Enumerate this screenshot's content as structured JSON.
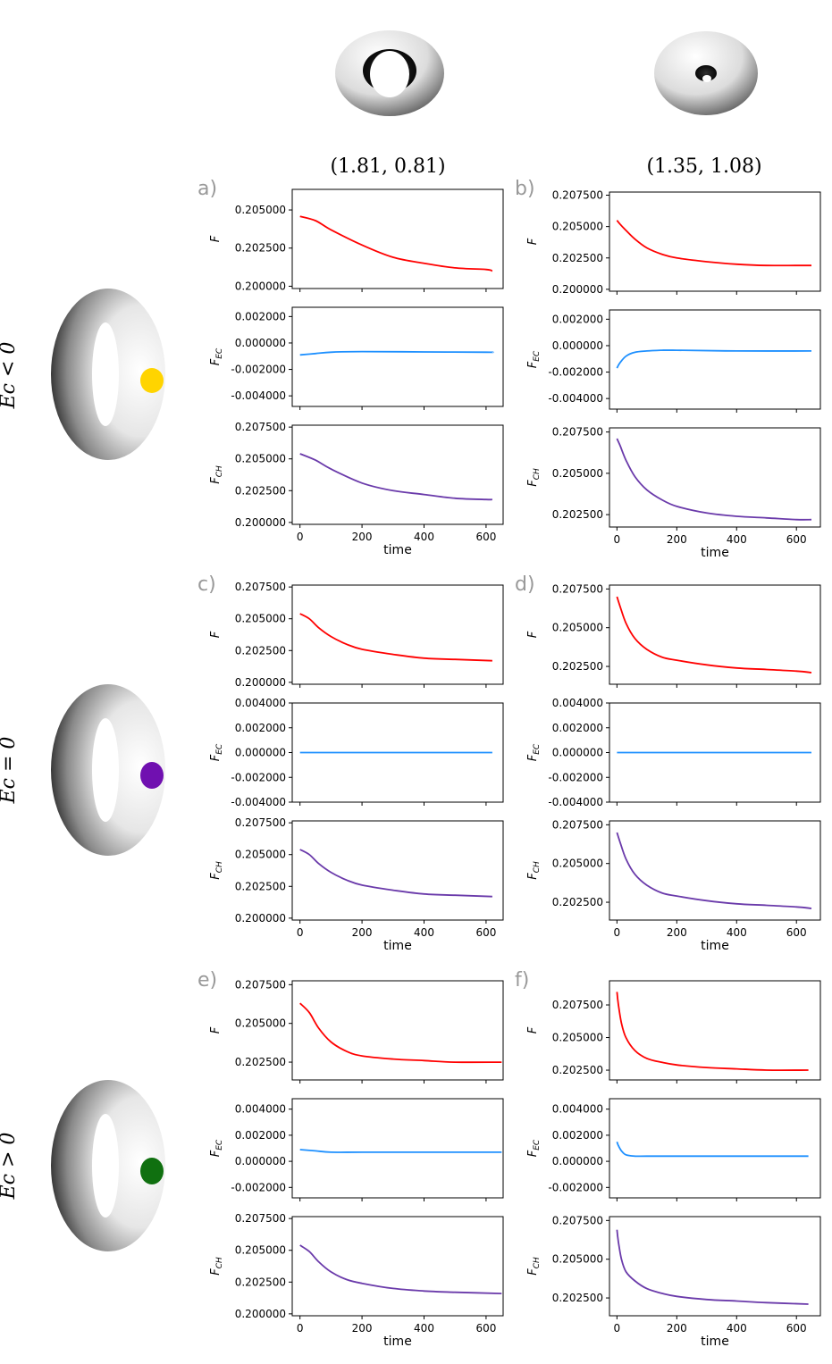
{
  "columns": [
    {
      "label": "(1.81, 0.81)"
    },
    {
      "label": "(1.35, 1.08)"
    }
  ],
  "rows": [
    {
      "label": "Ec < 0",
      "dot_color": "#ffd400"
    },
    {
      "label": "Ec = 0",
      "dot_color": "#7010b0"
    },
    {
      "label": "Ec > 0",
      "dot_color": "#107010"
    }
  ],
  "colors": {
    "F": "#ff0000",
    "F_EC": "#1e90ff",
    "F_CH": "#6a3aaa"
  },
  "chart_data": [
    {
      "type": "line",
      "panel": "a",
      "title": "a)",
      "xlabel": "time",
      "xticks": [
        0,
        200,
        400,
        600
      ],
      "subplots": [
        {
          "ylabel": "F",
          "color": "red",
          "ylim": [
            0.19985,
            0.20635
          ],
          "yticks": [
            "0.200000",
            "0.202500",
            "0.205000"
          ],
          "x": [
            0,
            50,
            100,
            200,
            300,
            400,
            500,
            600,
            620
          ],
          "y": [
            0.20458,
            0.2043,
            0.2037,
            0.2027,
            0.2019,
            0.2015,
            0.2012,
            0.2011,
            0.201
          ]
        },
        {
          "ylabel": "F_EC",
          "color": "blue",
          "ylim": [
            -0.0048,
            0.0027
          ],
          "yticks": [
            "-0.004000",
            "-0.002000",
            "0.000000",
            "0.002000"
          ],
          "x": [
            0,
            50,
            100,
            200,
            400,
            600,
            620
          ],
          "y": [
            -0.0009,
            -0.0008,
            -0.0007,
            -0.00065,
            -0.00068,
            -0.0007,
            -0.0007
          ],
          "ylabel_text": "FEC"
        },
        {
          "ylabel": "F_CH",
          "color": "purple",
          "ylim": [
            0.19985,
            0.20765
          ],
          "yticks": [
            "0.200000",
            "0.202500",
            "0.205000",
            "0.207500"
          ],
          "x": [
            0,
            50,
            100,
            200,
            300,
            400,
            500,
            600,
            620
          ],
          "y": [
            0.2054,
            0.2049,
            0.2042,
            0.2031,
            0.2025,
            0.2022,
            0.2019,
            0.2018,
            0.2018
          ],
          "ylabel_text": "FCH"
        }
      ]
    },
    {
      "type": "line",
      "panel": "b",
      "title": "b)",
      "xlabel": "time",
      "xticks": [
        0,
        200,
        400,
        600
      ],
      "subplots": [
        {
          "ylabel": "F",
          "color": "red",
          "ylim": [
            0.19985,
            0.20775
          ],
          "yticks": [
            "0.200000",
            "0.202500",
            "0.205000",
            "0.207500"
          ],
          "x": [
            0,
            10,
            30,
            60,
            100,
            150,
            200,
            300,
            400,
            500,
            600,
            650
          ],
          "y": [
            0.2055,
            0.2052,
            0.2047,
            0.204,
            0.2033,
            0.2028,
            0.2025,
            0.2022,
            0.202,
            0.2019,
            0.2019,
            0.2019
          ]
        },
        {
          "ylabel": "F_EC",
          "color": "blue",
          "ylim": [
            -0.0048,
            0.0027
          ],
          "yticks": [
            "-0.004000",
            "-0.002000",
            "0.000000",
            "0.002000"
          ],
          "x": [
            0,
            10,
            30,
            60,
            100,
            150,
            200,
            400,
            650
          ],
          "y": [
            -0.0017,
            -0.0013,
            -0.0008,
            -0.0005,
            -0.0004,
            -0.00035,
            -0.00035,
            -0.0004,
            -0.0004
          ],
          "ylabel_text": "FEC"
        },
        {
          "ylabel": "F_CH",
          "color": "purple",
          "ylim": [
            0.20175,
            0.20775
          ],
          "yticks": [
            "0.202500",
            "0.205000",
            "0.207500"
          ],
          "x": [
            0,
            10,
            30,
            60,
            100,
            150,
            200,
            300,
            400,
            500,
            600,
            650
          ],
          "y": [
            0.2071,
            0.2067,
            0.2058,
            0.2048,
            0.204,
            0.2034,
            0.203,
            0.2026,
            0.2024,
            0.2023,
            0.2022,
            0.2022
          ],
          "ylabel_text": "FCH"
        }
      ]
    },
    {
      "type": "line",
      "panel": "c",
      "title": "c)",
      "xlabel": "time",
      "xticks": [
        0,
        200,
        400,
        600
      ],
      "subplots": [
        {
          "ylabel": "F",
          "color": "red",
          "ylim": [
            0.19985,
            0.20765
          ],
          "yticks": [
            "0.200000",
            "0.202500",
            "0.205000",
            "0.207500"
          ],
          "x": [
            0,
            30,
            60,
            100,
            150,
            200,
            300,
            400,
            500,
            620
          ],
          "y": [
            0.2054,
            0.205,
            0.2043,
            0.2036,
            0.203,
            0.2026,
            0.2022,
            0.2019,
            0.2018,
            0.2017
          ]
        },
        {
          "ylabel": "F_EC",
          "color": "blue",
          "ylim": [
            -0.004,
            0.004
          ],
          "yticks": [
            "-0.004000",
            "-0.002000",
            "0.000000",
            "0.002000",
            "0.004000"
          ],
          "x": [
            0,
            620
          ],
          "y": [
            0.0,
            0.0
          ],
          "ylabel_text": "FEC"
        },
        {
          "ylabel": "F_CH",
          "color": "purple",
          "ylim": [
            0.19985,
            0.20765
          ],
          "yticks": [
            "0.200000",
            "0.202500",
            "0.205000",
            "0.207500"
          ],
          "x": [
            0,
            30,
            60,
            100,
            150,
            200,
            300,
            400,
            500,
            620
          ],
          "y": [
            0.2054,
            0.205,
            0.2043,
            0.2036,
            0.203,
            0.2026,
            0.2022,
            0.2019,
            0.2018,
            0.2017
          ],
          "ylabel_text": "FCH"
        }
      ]
    },
    {
      "type": "line",
      "panel": "d",
      "title": "d)",
      "xlabel": "time",
      "xticks": [
        0,
        200,
        400,
        600
      ],
      "subplots": [
        {
          "ylabel": "F",
          "color": "red",
          "ylim": [
            0.20135,
            0.20775
          ],
          "yticks": [
            "0.202500",
            "0.205000",
            "0.207500"
          ],
          "x": [
            0,
            10,
            30,
            60,
            100,
            150,
            200,
            300,
            400,
            500,
            600,
            650
          ],
          "y": [
            0.207,
            0.2064,
            0.2053,
            0.2043,
            0.2036,
            0.2031,
            0.2029,
            0.2026,
            0.2024,
            0.2023,
            0.2022,
            0.2021
          ]
        },
        {
          "ylabel": "F_EC",
          "color": "blue",
          "ylim": [
            -0.004,
            0.004
          ],
          "yticks": [
            "-0.004000",
            "-0.002000",
            "0.000000",
            "0.002000",
            "0.004000"
          ],
          "x": [
            0,
            650
          ],
          "y": [
            0.0,
            0.0
          ],
          "ylabel_text": "FEC"
        },
        {
          "ylabel": "F_CH",
          "color": "purple",
          "ylim": [
            0.20135,
            0.20775
          ],
          "yticks": [
            "0.202500",
            "0.205000",
            "0.207500"
          ],
          "x": [
            0,
            10,
            30,
            60,
            100,
            150,
            200,
            300,
            400,
            500,
            600,
            650
          ],
          "y": [
            0.207,
            0.2064,
            0.2053,
            0.2043,
            0.2036,
            0.2031,
            0.2029,
            0.2026,
            0.2024,
            0.2023,
            0.2022,
            0.2021
          ],
          "ylabel_text": "FCH"
        }
      ]
    },
    {
      "type": "line",
      "panel": "e",
      "title": "e)",
      "xlabel": "time",
      "xticks": [
        0,
        200,
        400,
        600
      ],
      "subplots": [
        {
          "ylabel": "F",
          "color": "red",
          "ylim": [
            0.20135,
            0.20775
          ],
          "yticks": [
            "0.202500",
            "0.205000",
            "0.207500"
          ],
          "x": [
            0,
            30,
            60,
            100,
            150,
            200,
            300,
            400,
            500,
            650
          ],
          "y": [
            0.2063,
            0.2057,
            0.2047,
            0.2038,
            0.2032,
            0.2029,
            0.2027,
            0.2026,
            0.2025,
            0.2025
          ]
        },
        {
          "ylabel": "F_EC",
          "color": "blue",
          "ylim": [
            -0.0028,
            0.0048
          ],
          "yticks": [
            "-0.002000",
            "0.000000",
            "0.002000",
            "0.004000"
          ],
          "x": [
            0,
            50,
            100,
            200,
            400,
            650
          ],
          "y": [
            0.0009,
            0.0008,
            0.0007,
            0.0007,
            0.0007,
            0.0007
          ],
          "ylabel_text": "FEC"
        },
        {
          "ylabel": "F_CH",
          "color": "purple",
          "ylim": [
            0.19985,
            0.20765
          ],
          "yticks": [
            "0.200000",
            "0.202500",
            "0.205000",
            "0.207500"
          ],
          "x": [
            0,
            30,
            60,
            100,
            150,
            200,
            300,
            400,
            500,
            650
          ],
          "y": [
            0.2054,
            0.2049,
            0.2041,
            0.2033,
            0.2027,
            0.2024,
            0.202,
            0.2018,
            0.2017,
            0.2016
          ],
          "ylabel_text": "FCH"
        }
      ]
    },
    {
      "type": "line",
      "panel": "f",
      "title": "f)",
      "xlabel": "time",
      "xticks": [
        0,
        200,
        400,
        600
      ],
      "subplots": [
        {
          "ylabel": "F",
          "color": "red",
          "ylim": [
            0.20175,
            0.20935
          ],
          "yticks": [
            "0.202500",
            "0.205000",
            "0.207500"
          ],
          "x": [
            0,
            5,
            15,
            30,
            60,
            100,
            150,
            200,
            300,
            400,
            500,
            640
          ],
          "y": [
            0.2085,
            0.2075,
            0.2061,
            0.205,
            0.204,
            0.2034,
            0.2031,
            0.2029,
            0.2027,
            0.2026,
            0.2025,
            0.2025
          ]
        },
        {
          "ylabel": "F_EC",
          "color": "blue",
          "ylim": [
            -0.0028,
            0.0048
          ],
          "yticks": [
            "-0.002000",
            "0.000000",
            "0.002000",
            "0.004000"
          ],
          "x": [
            0,
            5,
            15,
            30,
            60,
            100,
            200,
            400,
            640
          ],
          "y": [
            0.0015,
            0.0012,
            0.0008,
            0.0005,
            0.0004,
            0.0004,
            0.0004,
            0.0004,
            0.0004
          ],
          "ylabel_text": "FEC"
        },
        {
          "ylabel": "F_CH",
          "color": "purple",
          "ylim": [
            0.20135,
            0.20775
          ],
          "yticks": [
            "0.202500",
            "0.205000",
            "0.207500"
          ],
          "x": [
            0,
            5,
            15,
            30,
            60,
            100,
            150,
            200,
            300,
            400,
            500,
            640
          ],
          "y": [
            0.2069,
            0.2061,
            0.205,
            0.2042,
            0.2036,
            0.2031,
            0.2028,
            0.2026,
            0.2024,
            0.2023,
            0.2022,
            0.2021
          ],
          "ylabel_text": "FCH"
        }
      ]
    }
  ]
}
